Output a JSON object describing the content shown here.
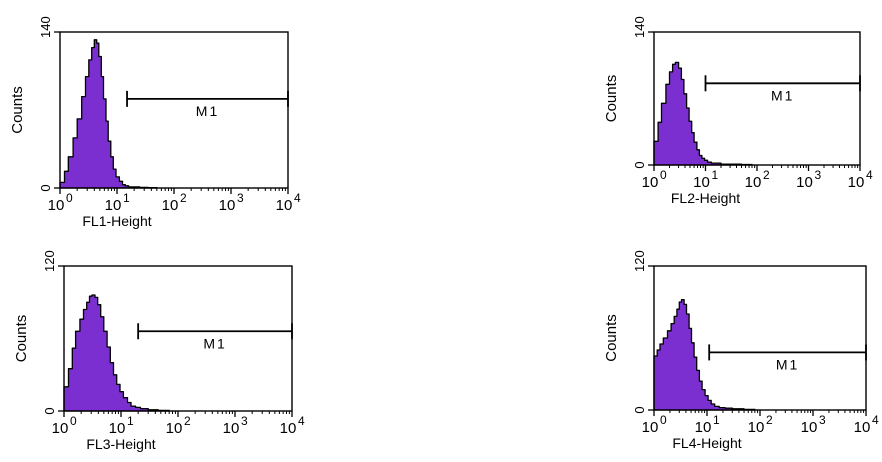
{
  "chart_data": [
    {
      "type": "area",
      "xlabel": "FL1-Height",
      "ylabel": "Counts",
      "x_scale": "log",
      "xlim": [
        1,
        10000
      ],
      "ylim": [
        0,
        140
      ],
      "y_ticks": [
        "0",
        "140"
      ],
      "x_ticks": [
        {
          "base": "10",
          "exp": "0"
        },
        {
          "base": "10",
          "exp": "1"
        },
        {
          "base": "10",
          "exp": "2"
        },
        {
          "base": "10",
          "exp": "3"
        },
        {
          "base": "10",
          "exp": "4"
        }
      ],
      "fill_color": "#7b2fd0",
      "x": [
        1,
        1.2,
        1.4,
        1.7,
        2,
        2.4,
        2.8,
        3.2,
        3.6,
        4,
        4.4,
        4.8,
        5.3,
        5.8,
        6.4,
        7,
        7.8,
        8.6,
        9.6,
        11,
        12.5,
        14,
        16,
        20,
        25,
        35,
        50
      ],
      "values": [
        5,
        15,
        28,
        45,
        62,
        82,
        100,
        115,
        126,
        133,
        130,
        118,
        100,
        80,
        60,
        42,
        28,
        17,
        10,
        6,
        3,
        2,
        1,
        1,
        0.5,
        0.3,
        0
      ],
      "marker": {
        "label": "M1",
        "x_start": 15,
        "x_end": 10000,
        "y": 80
      }
    },
    {
      "type": "area",
      "xlabel": "FL2-Height",
      "ylabel": "Counts",
      "x_scale": "log",
      "xlim": [
        1,
        10000
      ],
      "ylim": [
        0,
        140
      ],
      "y_ticks": [
        "0",
        "140"
      ],
      "x_ticks": [
        {
          "base": "10",
          "exp": "0"
        },
        {
          "base": "10",
          "exp": "1"
        },
        {
          "base": "10",
          "exp": "2"
        },
        {
          "base": "10",
          "exp": "3"
        },
        {
          "base": "10",
          "exp": "4"
        }
      ],
      "fill_color": "#7b2fd0",
      "x": [
        1,
        1.2,
        1.4,
        1.7,
        2,
        2.3,
        2.6,
        3,
        3.4,
        3.8,
        4.3,
        4.8,
        5.4,
        6,
        6.8,
        7.6,
        8.5,
        9.6,
        11,
        13,
        16,
        20,
        30,
        50,
        80
      ],
      "values": [
        25,
        45,
        65,
        85,
        98,
        106,
        108,
        102,
        90,
        75,
        60,
        46,
        34,
        24,
        16,
        10,
        7,
        5,
        3,
        2,
        2,
        1,
        1,
        0.5,
        0
      ],
      "marker": {
        "label": "M1",
        "x_start": 10,
        "x_end": 10000,
        "y": 86
      }
    },
    {
      "type": "area",
      "xlabel": "FL3-Height",
      "ylabel": "Counts",
      "x_scale": "log",
      "xlim": [
        1,
        10000
      ],
      "ylim": [
        0,
        120
      ],
      "y_ticks": [
        "0",
        "120"
      ],
      "x_ticks": [
        {
          "base": "10",
          "exp": "0"
        },
        {
          "base": "10",
          "exp": "1"
        },
        {
          "base": "10",
          "exp": "2"
        },
        {
          "base": "10",
          "exp": "3"
        },
        {
          "base": "10",
          "exp": "4"
        }
      ],
      "fill_color": "#7b2fd0",
      "x": [
        1,
        1.2,
        1.4,
        1.6,
        1.9,
        2.2,
        2.5,
        2.8,
        3.1,
        3.5,
        3.9,
        4.4,
        5,
        5.7,
        6.5,
        7.4,
        8.4,
        9.6,
        11,
        13,
        15,
        18,
        22,
        30,
        45,
        70
      ],
      "values": [
        20,
        35,
        52,
        66,
        76,
        84,
        90,
        95,
        96,
        94,
        88,
        78,
        66,
        53,
        40,
        30,
        22,
        16,
        11,
        7,
        4,
        3,
        2,
        1,
        0.5,
        0
      ],
      "marker": {
        "label": "M1",
        "x_start": 20,
        "x_end": 10000,
        "y": 66
      }
    },
    {
      "type": "area",
      "xlabel": "FL4-Height",
      "ylabel": "Counts",
      "x_scale": "log",
      "xlim": [
        1,
        10000
      ],
      "ylim": [
        0,
        120
      ],
      "y_ticks": [
        "0",
        "120"
      ],
      "x_ticks": [
        {
          "base": "10",
          "exp": "0"
        },
        {
          "base": "10",
          "exp": "1"
        },
        {
          "base": "10",
          "exp": "2"
        },
        {
          "base": "10",
          "exp": "3"
        },
        {
          "base": "10",
          "exp": "4"
        }
      ],
      "fill_color": "#7b2fd0",
      "x": [
        1,
        1.15,
        1.3,
        1.5,
        1.8,
        2.1,
        2.4,
        2.7,
        3,
        3.3,
        3.7,
        4.1,
        4.6,
        5.1,
        5.7,
        6.4,
        7.2,
        8.1,
        9.2,
        10.5,
        12,
        14,
        17,
        22,
        30,
        50,
        80
      ],
      "values": [
        45,
        50,
        55,
        60,
        66,
        72,
        78,
        84,
        90,
        92,
        88,
        80,
        68,
        56,
        44,
        33,
        24,
        17,
        12,
        8,
        5,
        3,
        2,
        1.5,
        1,
        0.5,
        0
      ],
      "marker": {
        "label": "M1",
        "x_start": 11,
        "x_end": 10000,
        "y": 48
      }
    }
  ]
}
